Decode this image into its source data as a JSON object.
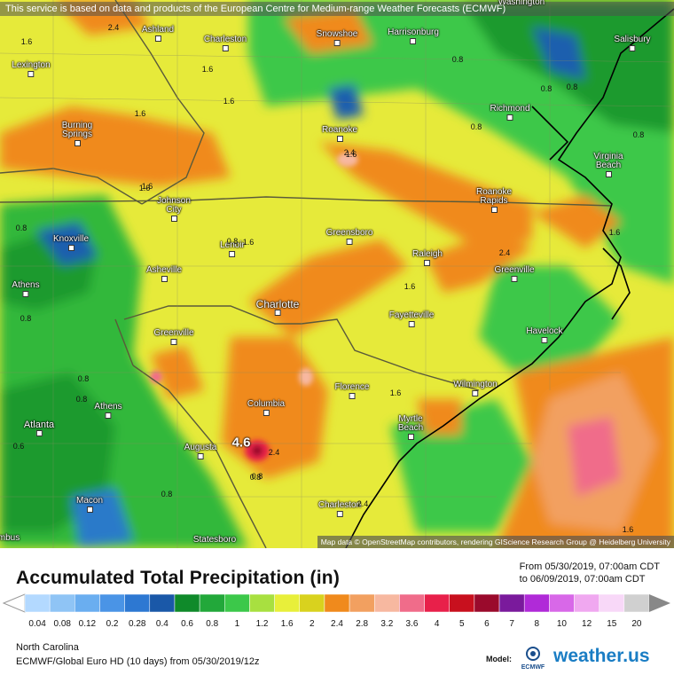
{
  "notice": "This service is based on data and products of the European Centre for Medium-range Weather Forecasts (ECMWF)",
  "attribution": "Map data © OpenStreetMap contributors, rendering GIScience Research Group @ Heidelberg University",
  "cities": [
    {
      "name": "Ashland"
    },
    {
      "name": "Charleston"
    },
    {
      "name": "Snowshoe"
    },
    {
      "name": "Harrisonburg"
    },
    {
      "name": "Salisbury"
    },
    {
      "name": "Lexington"
    },
    {
      "name": "Richmond"
    },
    {
      "name": "Burning Springs"
    },
    {
      "name": "Roanoke"
    },
    {
      "name": "Virginia Beach"
    },
    {
      "name": "Johnson City"
    },
    {
      "name": "Roanoke Rapids"
    },
    {
      "name": "Knoxville"
    },
    {
      "name": "Lenoir"
    },
    {
      "name": "Greensboro"
    },
    {
      "name": "Raleigh"
    },
    {
      "name": "Athens"
    },
    {
      "name": "Asheville"
    },
    {
      "name": "Greenville"
    },
    {
      "name": "Charlotte"
    },
    {
      "name": "Fayetteville"
    },
    {
      "name": "Havelock"
    },
    {
      "name": "Greenville"
    },
    {
      "name": "Wilmington"
    },
    {
      "name": "Athens"
    },
    {
      "name": "Florence"
    },
    {
      "name": "Columbia"
    },
    {
      "name": "Atlanta"
    },
    {
      "name": "Myrtle Beach"
    },
    {
      "name": "Augusta"
    },
    {
      "name": "Macon"
    },
    {
      "name": "Charleston"
    },
    {
      "name": "Statesboro"
    },
    {
      "name": "mbus"
    },
    {
      "name": "Washington"
    }
  ],
  "value_labels": [
    {
      "text": "2.4"
    },
    {
      "text": "1.6"
    },
    {
      "text": "1.6"
    },
    {
      "text": "1.6"
    },
    {
      "text": "1.6"
    },
    {
      "text": "0.8"
    },
    {
      "text": "0.8"
    },
    {
      "text": "0.8"
    },
    {
      "text": "2.4"
    },
    {
      "text": "1.6"
    },
    {
      "text": "0.8"
    },
    {
      "text": "1.6"
    },
    {
      "text": "2.4"
    },
    {
      "text": "1.6"
    },
    {
      "text": "0.8"
    },
    {
      "text": "0.8"
    },
    {
      "text": "1.6"
    },
    {
      "text": "0.8"
    },
    {
      "text": "0.8"
    },
    {
      "text": "0.6"
    },
    {
      "text": "2.4"
    },
    {
      "text": "1.6"
    },
    {
      "text": "0.8"
    },
    {
      "text": "0.8"
    },
    {
      "text": "2.4"
    },
    {
      "text": "1.6"
    },
    {
      "text": "0.8"
    },
    {
      "text": "1.6"
    },
    {
      "text": "0.8"
    },
    {
      "text": "1.6"
    },
    {
      "text": "0.8"
    }
  ],
  "max_label": "4.6",
  "title": "Accumulated Total Precipitation (in)",
  "date_from": "From 05/30/2019, 07:00am CDT",
  "date_to": "to 06/09/2019, 07:00am CDT",
  "legend": {
    "labels": [
      "0.04",
      "0.08",
      "0.12",
      "0.2",
      "0.28",
      "0.4",
      "0.6",
      "0.8",
      "1",
      "1.2",
      "1.6",
      "2",
      "2.4",
      "2.8",
      "3.2",
      "3.6",
      "4",
      "5",
      "6",
      "7",
      "8",
      "10",
      "12",
      "15",
      "20"
    ],
    "colors": [
      "#b3d9ff",
      "#8fc4f5",
      "#6aaef0",
      "#4a94e6",
      "#2d78d2",
      "#1a58a8",
      "#0f8a2a",
      "#22a83a",
      "#3cc84a",
      "#a8e040",
      "#e8ef3a",
      "#d9d21e",
      "#f08a1c",
      "#f2a060",
      "#f7b8a0",
      "#f06c8a",
      "#e8204a",
      "#c8101e",
      "#9a0a2c",
      "#7a1a9c",
      "#b02ad8",
      "#d868e8",
      "#f0a8f0",
      "#f8d8f8",
      "#d0d0d0"
    ]
  },
  "region": "North Carolina",
  "model": "ECMWF/Global Euro HD (10 days) from 05/30/2019/12z",
  "model_label": "Model:",
  "ecmwf_logo_text": "ECMWF",
  "brand": "weather.us"
}
